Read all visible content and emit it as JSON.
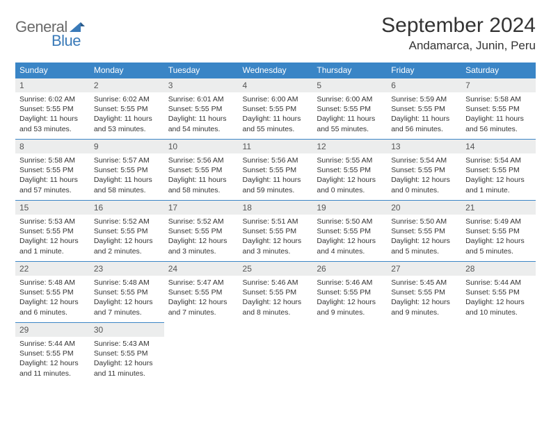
{
  "logo": {
    "part1": "General",
    "part2": "Blue"
  },
  "title": "September 2024",
  "location": "Andamarca, Junin, Peru",
  "colors": {
    "header_bg": "#3a85c6",
    "header_text": "#ffffff",
    "daynum_bg": "#eceded",
    "border": "#3a85c6",
    "logo_gray": "#6a6a6a",
    "logo_blue": "#3a7ab8"
  },
  "day_headers": [
    "Sunday",
    "Monday",
    "Tuesday",
    "Wednesday",
    "Thursday",
    "Friday",
    "Saturday"
  ],
  "weeks": [
    [
      {
        "n": "1",
        "sr": "Sunrise: 6:02 AM",
        "ss": "Sunset: 5:55 PM",
        "dl": "Daylight: 11 hours and 53 minutes."
      },
      {
        "n": "2",
        "sr": "Sunrise: 6:02 AM",
        "ss": "Sunset: 5:55 PM",
        "dl": "Daylight: 11 hours and 53 minutes."
      },
      {
        "n": "3",
        "sr": "Sunrise: 6:01 AM",
        "ss": "Sunset: 5:55 PM",
        "dl": "Daylight: 11 hours and 54 minutes."
      },
      {
        "n": "4",
        "sr": "Sunrise: 6:00 AM",
        "ss": "Sunset: 5:55 PM",
        "dl": "Daylight: 11 hours and 55 minutes."
      },
      {
        "n": "5",
        "sr": "Sunrise: 6:00 AM",
        "ss": "Sunset: 5:55 PM",
        "dl": "Daylight: 11 hours and 55 minutes."
      },
      {
        "n": "6",
        "sr": "Sunrise: 5:59 AM",
        "ss": "Sunset: 5:55 PM",
        "dl": "Daylight: 11 hours and 56 minutes."
      },
      {
        "n": "7",
        "sr": "Sunrise: 5:58 AM",
        "ss": "Sunset: 5:55 PM",
        "dl": "Daylight: 11 hours and 56 minutes."
      }
    ],
    [
      {
        "n": "8",
        "sr": "Sunrise: 5:58 AM",
        "ss": "Sunset: 5:55 PM",
        "dl": "Daylight: 11 hours and 57 minutes."
      },
      {
        "n": "9",
        "sr": "Sunrise: 5:57 AM",
        "ss": "Sunset: 5:55 PM",
        "dl": "Daylight: 11 hours and 58 minutes."
      },
      {
        "n": "10",
        "sr": "Sunrise: 5:56 AM",
        "ss": "Sunset: 5:55 PM",
        "dl": "Daylight: 11 hours and 58 minutes."
      },
      {
        "n": "11",
        "sr": "Sunrise: 5:56 AM",
        "ss": "Sunset: 5:55 PM",
        "dl": "Daylight: 11 hours and 59 minutes."
      },
      {
        "n": "12",
        "sr": "Sunrise: 5:55 AM",
        "ss": "Sunset: 5:55 PM",
        "dl": "Daylight: 12 hours and 0 minutes."
      },
      {
        "n": "13",
        "sr": "Sunrise: 5:54 AM",
        "ss": "Sunset: 5:55 PM",
        "dl": "Daylight: 12 hours and 0 minutes."
      },
      {
        "n": "14",
        "sr": "Sunrise: 5:54 AM",
        "ss": "Sunset: 5:55 PM",
        "dl": "Daylight: 12 hours and 1 minute."
      }
    ],
    [
      {
        "n": "15",
        "sr": "Sunrise: 5:53 AM",
        "ss": "Sunset: 5:55 PM",
        "dl": "Daylight: 12 hours and 1 minute."
      },
      {
        "n": "16",
        "sr": "Sunrise: 5:52 AM",
        "ss": "Sunset: 5:55 PM",
        "dl": "Daylight: 12 hours and 2 minutes."
      },
      {
        "n": "17",
        "sr": "Sunrise: 5:52 AM",
        "ss": "Sunset: 5:55 PM",
        "dl": "Daylight: 12 hours and 3 minutes."
      },
      {
        "n": "18",
        "sr": "Sunrise: 5:51 AM",
        "ss": "Sunset: 5:55 PM",
        "dl": "Daylight: 12 hours and 3 minutes."
      },
      {
        "n": "19",
        "sr": "Sunrise: 5:50 AM",
        "ss": "Sunset: 5:55 PM",
        "dl": "Daylight: 12 hours and 4 minutes."
      },
      {
        "n": "20",
        "sr": "Sunrise: 5:50 AM",
        "ss": "Sunset: 5:55 PM",
        "dl": "Daylight: 12 hours and 5 minutes."
      },
      {
        "n": "21",
        "sr": "Sunrise: 5:49 AM",
        "ss": "Sunset: 5:55 PM",
        "dl": "Daylight: 12 hours and 5 minutes."
      }
    ],
    [
      {
        "n": "22",
        "sr": "Sunrise: 5:48 AM",
        "ss": "Sunset: 5:55 PM",
        "dl": "Daylight: 12 hours and 6 minutes."
      },
      {
        "n": "23",
        "sr": "Sunrise: 5:48 AM",
        "ss": "Sunset: 5:55 PM",
        "dl": "Daylight: 12 hours and 7 minutes."
      },
      {
        "n": "24",
        "sr": "Sunrise: 5:47 AM",
        "ss": "Sunset: 5:55 PM",
        "dl": "Daylight: 12 hours and 7 minutes."
      },
      {
        "n": "25",
        "sr": "Sunrise: 5:46 AM",
        "ss": "Sunset: 5:55 PM",
        "dl": "Daylight: 12 hours and 8 minutes."
      },
      {
        "n": "26",
        "sr": "Sunrise: 5:46 AM",
        "ss": "Sunset: 5:55 PM",
        "dl": "Daylight: 12 hours and 9 minutes."
      },
      {
        "n": "27",
        "sr": "Sunrise: 5:45 AM",
        "ss": "Sunset: 5:55 PM",
        "dl": "Daylight: 12 hours and 9 minutes."
      },
      {
        "n": "28",
        "sr": "Sunrise: 5:44 AM",
        "ss": "Sunset: 5:55 PM",
        "dl": "Daylight: 12 hours and 10 minutes."
      }
    ],
    [
      {
        "n": "29",
        "sr": "Sunrise: 5:44 AM",
        "ss": "Sunset: 5:55 PM",
        "dl": "Daylight: 12 hours and 11 minutes."
      },
      {
        "n": "30",
        "sr": "Sunrise: 5:43 AM",
        "ss": "Sunset: 5:55 PM",
        "dl": "Daylight: 12 hours and 11 minutes."
      },
      null,
      null,
      null,
      null,
      null
    ]
  ]
}
